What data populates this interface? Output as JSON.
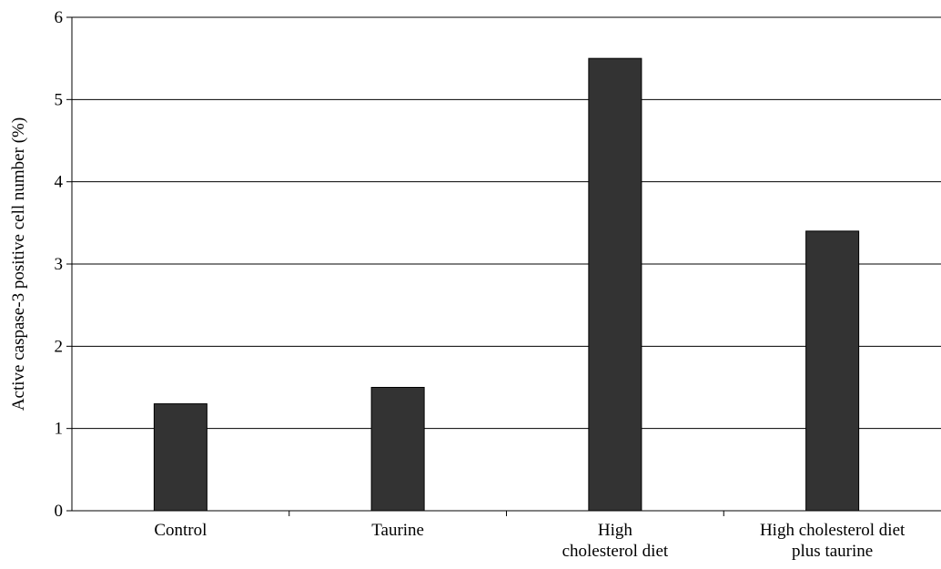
{
  "chart_data": {
    "type": "bar",
    "title": "",
    "xlabel": "",
    "ylabel": "Active caspase-3 positive cell number (%)",
    "categories": [
      [
        "Control"
      ],
      [
        "Taurine"
      ],
      [
        "High",
        "cholesterol diet"
      ],
      [
        "High cholesterol diet",
        "plus taurine"
      ]
    ],
    "values": [
      1.3,
      1.5,
      5.5,
      3.4
    ],
    "ylim": [
      0,
      6
    ],
    "yticks": [
      0,
      1,
      2,
      3,
      4,
      5,
      6
    ],
    "grid": true,
    "legend": "none",
    "colors": {
      "bar": "#333333",
      "bar_edge": "#000000",
      "grid": "#000000",
      "axis": "#000000",
      "background": "#ffffff"
    }
  }
}
